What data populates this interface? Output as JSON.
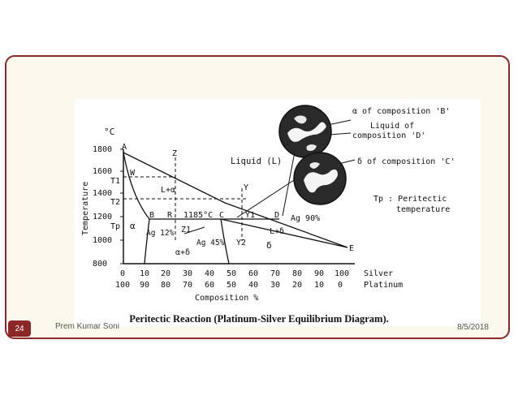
{
  "slide": {
    "number": "24",
    "author": "Prem Kumar Soni",
    "date": "8/5/2018"
  },
  "figure": {
    "caption": "Peritectic Reaction (Platinum-Silver Equilibrium Diagram).",
    "y_unit": "°C",
    "y_axis_label": "Temperature",
    "x_axis_label": "Composition %",
    "y_ticks": [
      "1800",
      "1600",
      "1400",
      "1200",
      "1000",
      "800"
    ],
    "y_marks": [
      "T1",
      "T2",
      "Tp"
    ],
    "x_ticks_silver": [
      "0",
      "10",
      "20",
      "30",
      "40",
      "50",
      "60",
      "70",
      "80",
      "90",
      "100"
    ],
    "x_ticks_platinum": [
      "100",
      "90",
      "80",
      "70",
      "60",
      "50",
      "40",
      "30",
      "20",
      "10",
      "0"
    ],
    "x_series_silver": "Silver",
    "x_series_platinum": "Platinum",
    "points": [
      "A",
      "B",
      "R",
      "C",
      "D",
      "E",
      "W",
      "Z",
      "Z1",
      "Y",
      "Y1",
      "Y2"
    ],
    "region_liquid": "Liquid (L)",
    "region_l_alpha": "L+α",
    "region_l_delta": "L+δ",
    "region_alpha": "α",
    "region_alpha_delta": "α+δ",
    "region_delta": "δ",
    "peritectic_temp": "1185°C",
    "comp_b": "Ag 12%",
    "comp_c": "Ag 45%",
    "comp_d": "Ag 90%",
    "micro_alpha": "α of composition 'B'",
    "micro_liquid_1": "Liquid of",
    "micro_liquid_2": "composition 'D'",
    "micro_delta": "δ of composition 'C'",
    "note_1": "Tp : Peritectic",
    "note_2": "temperature"
  }
}
